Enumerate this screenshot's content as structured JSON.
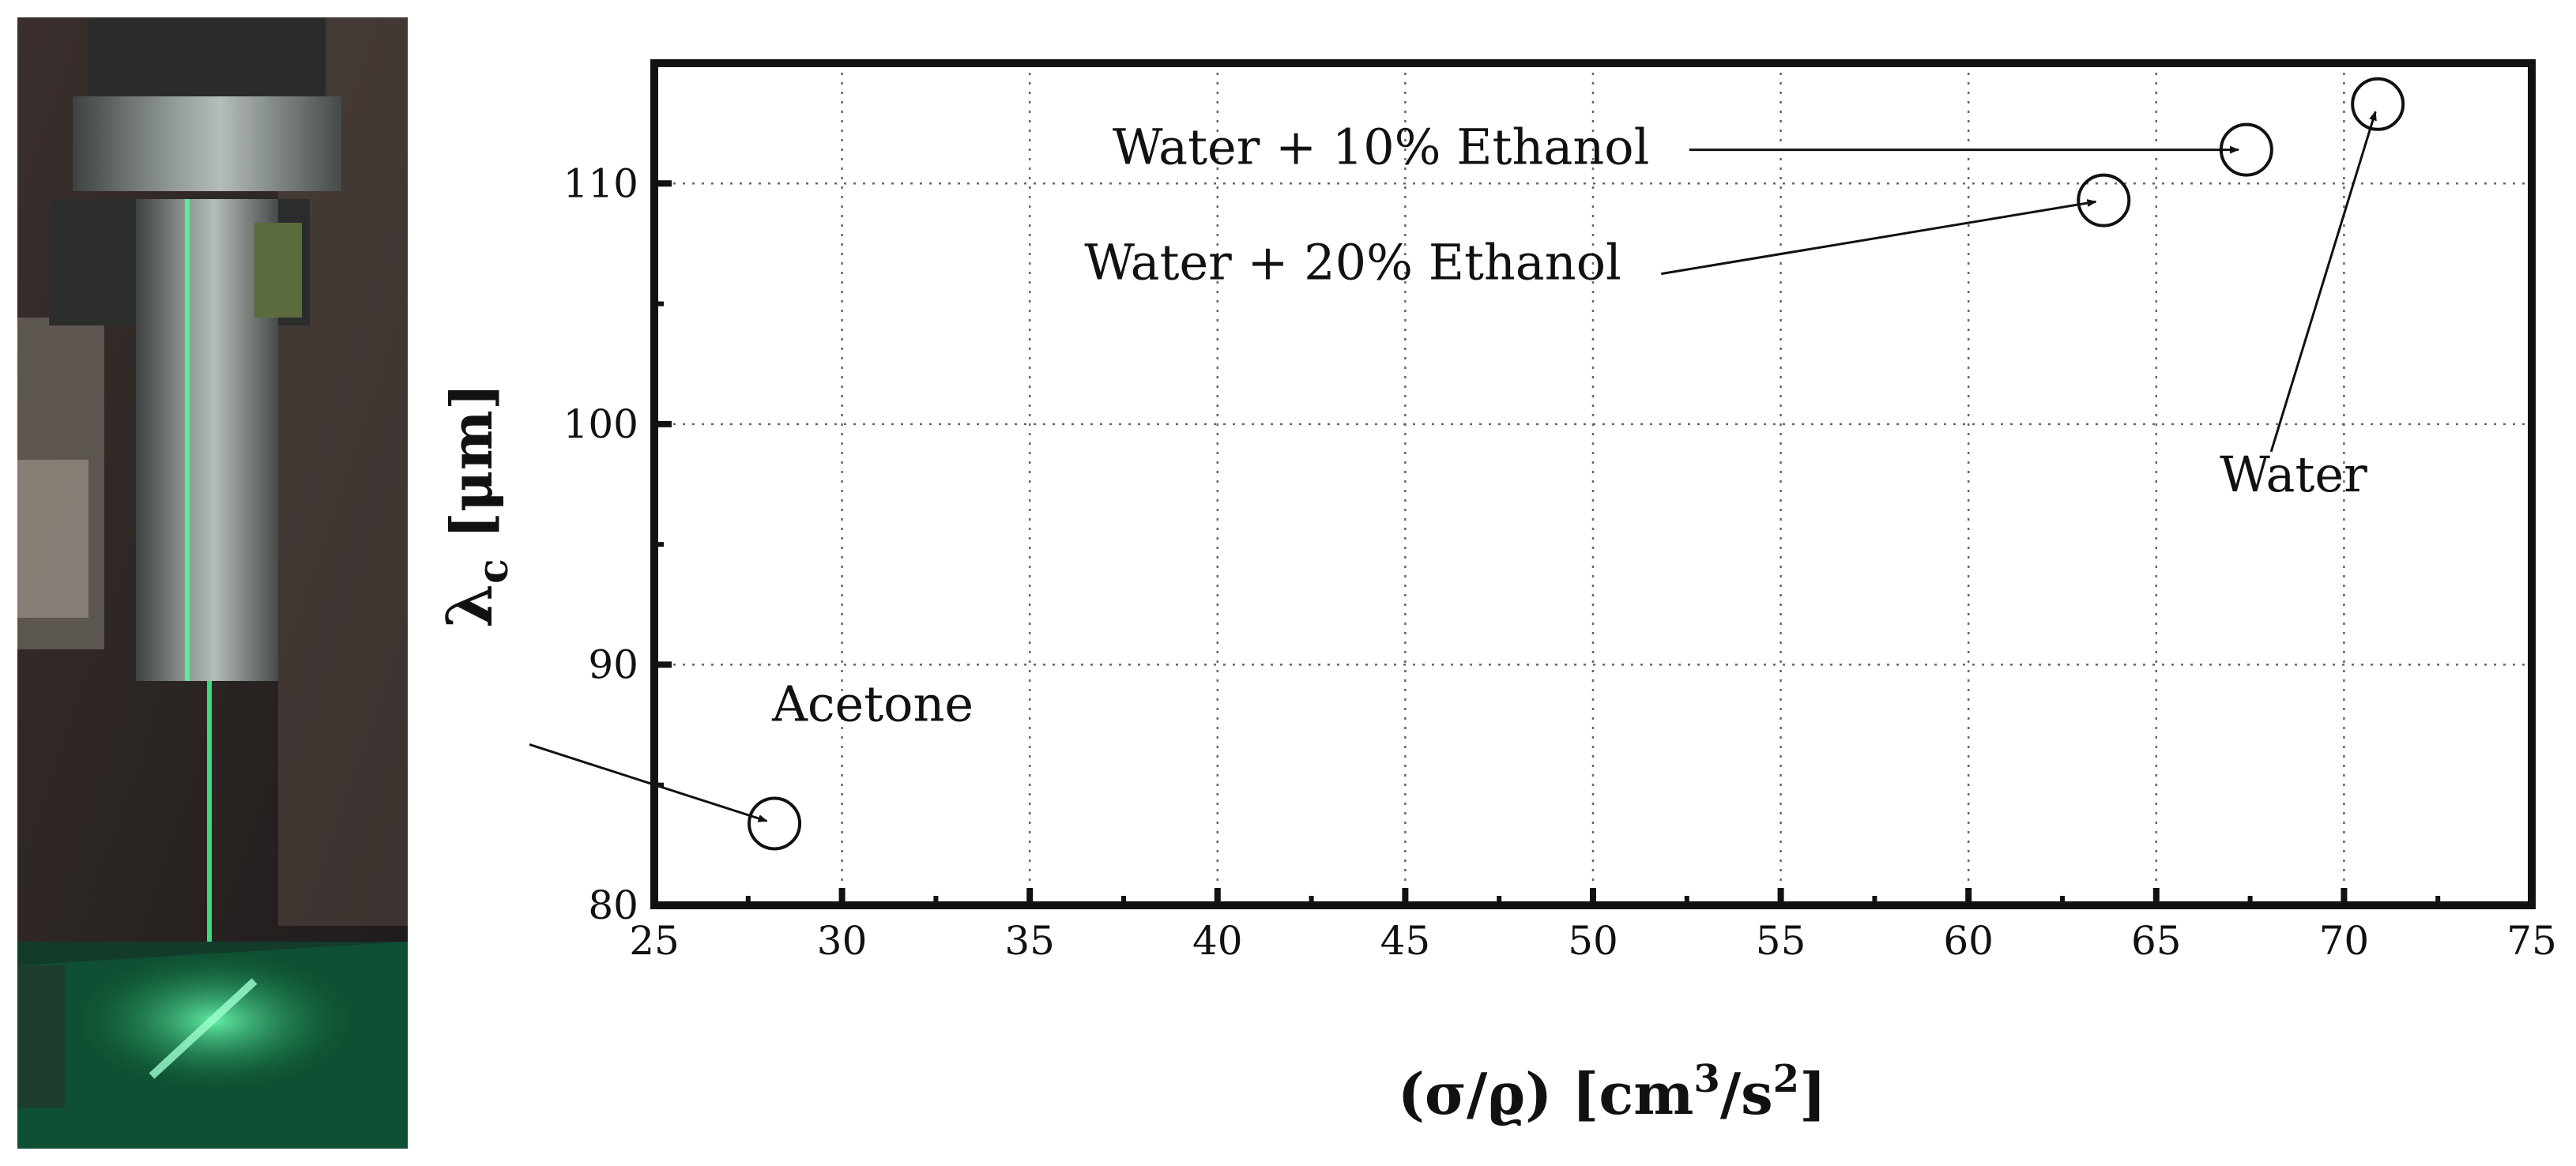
{
  "photo": {
    "description": "photograph of a vertical liquid jet nozzle illuminated by a green laser sheet"
  },
  "chart_data": {
    "type": "scatter",
    "title": "",
    "xlabel": "(σ/ϱ) [cm3/s2]",
    "xlabel_parts": {
      "open": "(σ/ϱ) [cm",
      "sup1": "3",
      "mid": "/s",
      "sup2": "2",
      "close": "]"
    },
    "ylabel": "λc [μm]",
    "ylabel_parts": {
      "lambda": "λ",
      "sub": "c",
      "rest": " [μm]"
    },
    "xlim": [
      25,
      75
    ],
    "ylim": [
      80,
      115
    ],
    "xticks": [
      25,
      30,
      35,
      40,
      45,
      50,
      55,
      60,
      65,
      70,
      75
    ],
    "yticks": [
      80,
      90,
      100,
      110
    ],
    "grid": true,
    "points": [
      {
        "label": "Acetone",
        "x": 28.2,
        "y": 83.4
      },
      {
        "label": "Water + 20% Ethanol",
        "x": 63.6,
        "y": 109.3
      },
      {
        "label": "Water + 10% Ethanol",
        "x": 67.4,
        "y": 111.4
      },
      {
        "label": "Water",
        "x": 70.9,
        "y": 113.3
      }
    ]
  }
}
